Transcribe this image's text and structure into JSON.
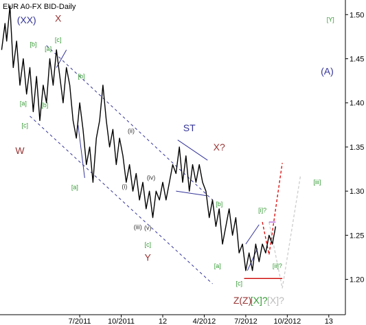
{
  "chart_data": {
    "type": "line",
    "title": "EUR A0-FX BID-Daily",
    "xlabel": "",
    "ylabel": "",
    "ylim": [
      1.16,
      1.53
    ],
    "grid": false,
    "y_ticks": [
      "1.50",
      "1.45",
      "1.40",
      "1.35",
      "1.30",
      "1.25",
      "1.20"
    ],
    "y_tick_values": [
      1.5,
      1.45,
      1.4,
      1.35,
      1.3,
      1.25,
      1.2
    ],
    "x_ticks": [
      "7/2011",
      "10/2011",
      "12",
      "4/2012",
      "7/2012",
      "10/2012",
      "13"
    ],
    "x_tick_months": [
      2011.5,
      2011.75,
      2012.0,
      2012.25,
      2012.5,
      2012.75,
      2013.0
    ],
    "xlim": [
      2011.02,
      2013.1
    ],
    "price": [
      [
        2011.03,
        1.46
      ],
      [
        2011.05,
        1.49
      ],
      [
        2011.06,
        1.47
      ],
      [
        2011.08,
        1.51
      ],
      [
        2011.1,
        1.44
      ],
      [
        2011.12,
        1.47
      ],
      [
        2011.14,
        1.42
      ],
      [
        2011.16,
        1.45
      ],
      [
        2011.18,
        1.41
      ],
      [
        2011.2,
        1.44
      ],
      [
        2011.22,
        1.39
      ],
      [
        2011.24,
        1.43
      ],
      [
        2011.26,
        1.38
      ],
      [
        2011.28,
        1.42
      ],
      [
        2011.3,
        1.4
      ],
      [
        2011.32,
        1.45
      ],
      [
        2011.34,
        1.42
      ],
      [
        2011.36,
        1.46
      ],
      [
        2011.38,
        1.43
      ],
      [
        2011.4,
        1.4
      ],
      [
        2011.42,
        1.44
      ],
      [
        2011.44,
        1.42
      ],
      [
        2011.46,
        1.38
      ],
      [
        2011.48,
        1.36
      ],
      [
        2011.5,
        1.4
      ],
      [
        2011.52,
        1.37
      ],
      [
        2011.54,
        1.33
      ],
      [
        2011.56,
        1.35
      ],
      [
        2011.58,
        1.31
      ],
      [
        2011.6,
        1.36
      ],
      [
        2011.62,
        1.38
      ],
      [
        2011.64,
        1.42
      ],
      [
        2011.66,
        1.38
      ],
      [
        2011.68,
        1.35
      ],
      [
        2011.7,
        1.37
      ],
      [
        2011.72,
        1.33
      ],
      [
        2011.74,
        1.36
      ],
      [
        2011.76,
        1.34
      ],
      [
        2011.78,
        1.31
      ],
      [
        2011.8,
        1.33
      ],
      [
        2011.82,
        1.3
      ],
      [
        2011.84,
        1.32
      ],
      [
        2011.86,
        1.29
      ],
      [
        2011.88,
        1.31
      ],
      [
        2011.9,
        1.28
      ],
      [
        2011.92,
        1.3
      ],
      [
        2011.94,
        1.27
      ],
      [
        2011.96,
        1.3
      ],
      [
        2011.98,
        1.29
      ],
      [
        2012.0,
        1.31
      ],
      [
        2012.02,
        1.29
      ],
      [
        2012.04,
        1.31
      ],
      [
        2012.06,
        1.33
      ],
      [
        2012.08,
        1.32
      ],
      [
        2012.1,
        1.35
      ],
      [
        2012.12,
        1.31
      ],
      [
        2012.14,
        1.34
      ],
      [
        2012.16,
        1.3
      ],
      [
        2012.18,
        1.33
      ],
      [
        2012.2,
        1.31
      ],
      [
        2012.22,
        1.33
      ],
      [
        2012.24,
        1.31
      ],
      [
        2012.26,
        1.3
      ],
      [
        2012.28,
        1.27
      ],
      [
        2012.3,
        1.29
      ],
      [
        2012.32,
        1.26
      ],
      [
        2012.34,
        1.28
      ],
      [
        2012.36,
        1.24
      ],
      [
        2012.38,
        1.26
      ],
      [
        2012.4,
        1.28
      ],
      [
        2012.42,
        1.25
      ],
      [
        2012.44,
        1.27
      ],
      [
        2012.46,
        1.23
      ],
      [
        2012.48,
        1.24
      ],
      [
        2012.5,
        1.21
      ],
      [
        2012.52,
        1.23
      ],
      [
        2012.54,
        1.21
      ],
      [
        2012.56,
        1.24
      ],
      [
        2012.58,
        1.22
      ],
      [
        2012.6,
        1.24
      ],
      [
        2012.62,
        1.23
      ],
      [
        2012.64,
        1.25
      ],
      [
        2012.66,
        1.24
      ],
      [
        2012.68,
        1.26
      ]
    ],
    "annotations": [
      {
        "text": "(XX)",
        "x": 2011.18,
        "y": 1.49,
        "color": "#333399"
      },
      {
        "text": "X",
        "x": 2011.37,
        "y": 1.492,
        "color": "#993333"
      },
      {
        "text": "[Y]",
        "x": 2013.01,
        "y": 1.492,
        "color": "#339933"
      },
      {
        "text": "(A)",
        "x": 2012.99,
        "y": 1.432,
        "color": "#333399"
      },
      {
        "text": "W",
        "x": 2011.14,
        "y": 1.342,
        "color": "#993333"
      },
      {
        "text": "ST",
        "x": 2012.16,
        "y": 1.368,
        "color": "#333399"
      },
      {
        "text": "X?",
        "x": 2012.34,
        "y": 1.346,
        "color": "#993333"
      },
      {
        "text": "Y",
        "x": 2011.91,
        "y": 1.221,
        "color": "#993333"
      },
      {
        "text": "[b]",
        "x": 2011.22,
        "y": 1.464,
        "color": "#339933"
      },
      {
        "text": "[a]",
        "x": 2011.31,
        "y": 1.459,
        "color": "#339933"
      },
      {
        "text": "[c]",
        "x": 2011.37,
        "y": 1.469,
        "color": "#339933"
      },
      {
        "text": "[b]",
        "x": 2011.51,
        "y": 1.428,
        "color": "#339933"
      },
      {
        "text": "[a]",
        "x": 2011.16,
        "y": 1.397,
        "color": "#339933"
      },
      {
        "text": "[b]",
        "x": 2011.29,
        "y": 1.395,
        "color": "#339933"
      },
      {
        "text": "[c]",
        "x": 2011.17,
        "y": 1.372,
        "color": "#339933"
      },
      {
        "text": "[a]",
        "x": 2011.47,
        "y": 1.302,
        "color": "#339933"
      },
      {
        "text": "[c]",
        "x": 2011.91,
        "y": 1.237,
        "color": "#339933"
      },
      {
        "text": "[a]",
        "x": 2012.33,
        "y": 1.213,
        "color": "#339933"
      },
      {
        "text": "[b]",
        "x": 2012.34,
        "y": 1.283,
        "color": "#339933"
      },
      {
        "text": "[c]",
        "x": 2012.46,
        "y": 1.193,
        "color": "#339933"
      },
      {
        "text": "[i]?",
        "x": 2012.6,
        "y": 1.276,
        "color": "#339933"
      },
      {
        "text": "[ii]?",
        "x": 2012.69,
        "y": 1.213,
        "color": "#339933"
      },
      {
        "text": "[iii]",
        "x": 2012.93,
        "y": 1.308,
        "color": "#339933"
      },
      {
        "text": "(ii)",
        "x": 2011.81,
        "y": 1.366,
        "color": "#333333"
      },
      {
        "text": "(iv)",
        "x": 2011.93,
        "y": 1.313,
        "color": "#333333"
      },
      {
        "text": "(i)",
        "x": 2011.77,
        "y": 1.303,
        "color": "#333333"
      },
      {
        "text": "(iii)",
        "x": 2011.85,
        "y": 1.257,
        "color": "#333333"
      },
      {
        "text": "(v)",
        "x": 2011.91,
        "y": 1.256,
        "color": "#333333"
      }
    ],
    "bottom_labels": [
      {
        "text": "Z(Z)",
        "x": 2012.48,
        "color": "#993333"
      },
      {
        "text": "[X]?",
        "x": 2012.58,
        "color": "#339933"
      },
      {
        "text": "[X]?",
        "x": 2012.68,
        "color": "#bbbbbb"
      }
    ],
    "trend_lines": [
      {
        "from": [
          2011.3,
          1.465
        ],
        "to": [
          2012.3,
          1.29
        ],
        "color": "#333399",
        "dash": true
      },
      {
        "from": [
          2011.2,
          1.385
        ],
        "to": [
          2012.3,
          1.195
        ],
        "color": "#333399",
        "dash": true
      },
      {
        "from": [
          2011.36,
          1.44
        ],
        "to": [
          2011.42,
          1.46
        ],
        "color": "#333399",
        "dash": false
      },
      {
        "from": [
          2011.49,
          1.375
        ],
        "to": [
          2011.53,
          1.315
        ],
        "color": "#333399",
        "dash": false
      },
      {
        "from": [
          2012.09,
          1.358
        ],
        "to": [
          2012.27,
          1.335
        ],
        "color": "#333399",
        "dash": false
      },
      {
        "from": [
          2012.08,
          1.3
        ],
        "to": [
          2012.26,
          1.295
        ],
        "color": "#333399",
        "dash": false
      },
      {
        "from": [
          2012.5,
          1.24
        ],
        "to": [
          2012.58,
          1.262
        ],
        "color": "#333399",
        "dash": false
      },
      {
        "from": [
          2012.51,
          1.21
        ],
        "to": [
          2012.57,
          1.235
        ],
        "color": "#333399",
        "dash": false
      },
      {
        "from": [
          2012.49,
          1.201
        ],
        "to": [
          2012.72,
          1.201
        ],
        "color": "#cc0000",
        "dash": false
      },
      {
        "from": [
          2012.64,
          1.265
        ],
        "to": [
          2012.68,
          1.265
        ],
        "color": "#9933cc",
        "dash": false
      }
    ],
    "projections": [
      {
        "points": [
          [
            2012.6,
            1.265
          ],
          [
            2012.64,
            1.228
          ],
          [
            2012.72,
            1.332
          ]
        ],
        "color": "#dd0000"
      },
      {
        "points": [
          [
            2012.64,
            1.265
          ],
          [
            2012.72,
            1.19
          ],
          [
            2012.83,
            1.318
          ]
        ],
        "color": "#cccccc"
      }
    ]
  }
}
